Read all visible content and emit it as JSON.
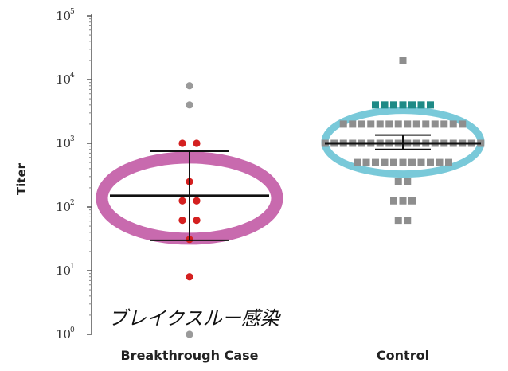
{
  "chart_data": {
    "type": "scatter",
    "ylabel": "Titer",
    "yscale": "log",
    "ylim": [
      1,
      100000
    ],
    "y_ticks": [
      {
        "base": "10",
        "exp": "0",
        "value": 1
      },
      {
        "base": "10",
        "exp": "1",
        "value": 10
      },
      {
        "base": "10",
        "exp": "2",
        "value": 100
      },
      {
        "base": "10",
        "exp": "3",
        "value": 1000
      },
      {
        "base": "10",
        "exp": "4",
        "value": 10000
      },
      {
        "base": "10",
        "exp": "5",
        "value": 100000
      }
    ],
    "categories": [
      "Breakthrough Case",
      "Control"
    ],
    "grid": false,
    "series": [
      {
        "category": "Breakthrough Case",
        "marker": "circle",
        "points": [
          {
            "y": 8000,
            "color": "#9a9a9a"
          },
          {
            "y": 4000,
            "color": "#9a9a9a"
          },
          {
            "y": 1000,
            "color": "#d42020"
          },
          {
            "y": 1000,
            "color": "#d42020"
          },
          {
            "y": 250,
            "color": "#d42020"
          },
          {
            "y": 125,
            "color": "#d42020"
          },
          {
            "y": 125,
            "color": "#d42020"
          },
          {
            "y": 62,
            "color": "#d42020"
          },
          {
            "y": 62,
            "color": "#d42020"
          },
          {
            "y": 31,
            "color": "#d42020"
          },
          {
            "y": 8,
            "color": "#d42020"
          },
          {
            "y": 1,
            "color": "#9a9a9a"
          }
        ],
        "mean": 150,
        "ci": [
          30,
          750
        ],
        "highlight_color": "#c86aae"
      },
      {
        "category": "Control",
        "marker": "square",
        "points": [
          {
            "y": 20000,
            "count": 1,
            "color": "#8e8e8e"
          },
          {
            "y": 4000,
            "count": 7,
            "color": "#1e8a86"
          },
          {
            "y": 2000,
            "count": 14,
            "color": "#8e8e8e"
          },
          {
            "y": 1000,
            "count": 18,
            "color": "#8e8e8e"
          },
          {
            "y": 500,
            "count": 11,
            "color": "#8e8e8e"
          },
          {
            "y": 250,
            "count": 2,
            "color": "#8e8e8e"
          },
          {
            "y": 125,
            "count": 3,
            "color": "#8e8e8e"
          },
          {
            "y": 62,
            "count": 2,
            "color": "#8e8e8e"
          }
        ],
        "mean": 1000,
        "ci": [
          800,
          1350
        ],
        "highlight_color": "#79c9d9"
      }
    ],
    "annotation": "ブレイクスルー感染"
  }
}
